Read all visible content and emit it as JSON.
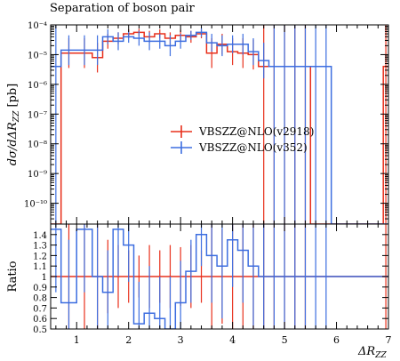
{
  "chart_data": [
    {
      "type": "line",
      "title": "Separation of boson pair",
      "ylabel": "dσ/dΔR_ZZ [pb]",
      "xlabel": "ΔR_ZZ",
      "xlim": [
        0.5,
        7.0
      ],
      "ylim_log10": [
        -10.7,
        -4.0
      ],
      "yscale": "log",
      "y_ticks": [
        {
          "exp": -4,
          "label": "10⁻⁴"
        },
        {
          "exp": -5,
          "label": "10⁻⁵"
        },
        {
          "exp": -6,
          "label": "10⁻⁶"
        },
        {
          "exp": -7,
          "label": "10⁻⁷"
        },
        {
          "exp": -8,
          "label": "10⁻⁸"
        },
        {
          "exp": -9,
          "label": "10⁻⁹"
        },
        {
          "exp": -10,
          "label": "10⁻¹⁰"
        }
      ],
      "x_ticks": [
        1,
        2,
        3,
        4,
        5,
        6,
        7
      ],
      "legend_position": "center-right",
      "series": [
        {
          "name": "VBSZZ@NLO(v2918)",
          "color": "#e8301c",
          "edges": [
            0.5,
            0.7,
            1.0,
            1.3,
            1.5,
            1.7,
            1.9,
            2.1,
            2.3,
            2.5,
            2.7,
            2.9,
            3.1,
            3.3,
            3.5,
            3.7,
            3.9,
            4.1,
            4.3,
            4.5,
            4.7,
            4.9,
            5.1,
            5.3,
            5.5,
            5.7,
            5.9,
            6.1,
            6.3,
            6.5,
            6.7,
            6.9,
            7.0
          ],
          "log10_values": [
            -10.7,
            -4.95,
            -4.95,
            -5.1,
            -4.55,
            -4.45,
            -4.3,
            -4.25,
            -4.4,
            -4.3,
            -4.45,
            -4.35,
            -4.4,
            -4.3,
            -4.95,
            -4.65,
            -4.9,
            -4.95,
            -5.0,
            -5.4,
            -5.4,
            -5.4,
            -5.4,
            -5.4,
            -10.7,
            -10.7,
            -10.7,
            -10.7,
            -10.7,
            -10.7,
            -10.7,
            -5.4
          ],
          "log10_errors": [
            0,
            0.5,
            0.5,
            0.5,
            0.25,
            0.2,
            0.15,
            0.12,
            0.2,
            0.15,
            0.2,
            0.18,
            0.2,
            0.15,
            0.5,
            0.35,
            0.45,
            0.5,
            0.5,
            6,
            6,
            6,
            6,
            6,
            0,
            0,
            0,
            0,
            0,
            0,
            0,
            6
          ]
        },
        {
          "name": "VBSZZ@NLO(v352)",
          "color": "#3d6ee0",
          "edges": [
            0.5,
            0.7,
            1.0,
            1.3,
            1.5,
            1.7,
            1.9,
            2.1,
            2.3,
            2.5,
            2.7,
            2.9,
            3.1,
            3.3,
            3.5,
            3.7,
            3.9,
            4.1,
            4.3,
            4.5,
            4.7,
            4.9,
            5.1,
            5.3,
            5.5,
            5.7,
            5.9,
            6.1,
            6.3,
            6.5,
            6.7,
            6.9,
            7.0
          ],
          "log10_values": [
            -5.4,
            -4.85,
            -4.85,
            -4.85,
            -4.4,
            -4.55,
            -4.4,
            -4.45,
            -4.55,
            -4.55,
            -4.7,
            -4.55,
            -4.35,
            -4.25,
            -4.6,
            -4.7,
            -4.65,
            -4.65,
            -4.9,
            -5.2,
            -5.4,
            -5.4,
            -5.4,
            -5.4,
            -5.4,
            -5.4,
            -10.7,
            -10.7,
            -10.7,
            -10.7,
            -10.7,
            -10.7
          ],
          "log10_errors": [
            6,
            0.5,
            0.5,
            0.5,
            0.25,
            0.3,
            0.2,
            0.25,
            0.3,
            0.25,
            0.35,
            0.25,
            0.15,
            0.15,
            0.3,
            0.35,
            0.3,
            0.35,
            0.45,
            0.6,
            6,
            6,
            6,
            6,
            6,
            6,
            0,
            0,
            0,
            0,
            0,
            0
          ]
        }
      ]
    },
    {
      "type": "line",
      "ylabel": "Ratio",
      "xlabel": "ΔR_ZZ",
      "xlim": [
        0.5,
        7.0
      ],
      "ylim": [
        0.5,
        1.5
      ],
      "y_ticks": [
        0.5,
        0.6,
        0.7,
        0.8,
        0.9,
        1,
        1.1,
        1.2,
        1.3,
        1.4
      ],
      "series": [
        {
          "name": "VBSZZ@NLO(v2918)",
          "color": "#e8301c",
          "edges": [
            0.5,
            0.7,
            1.0,
            1.3,
            1.5,
            1.7,
            1.9,
            2.1,
            2.3,
            2.5,
            2.7,
            2.9,
            3.1,
            3.3,
            3.5,
            3.7,
            3.9,
            4.1,
            4.3,
            4.5,
            4.7,
            4.9,
            5.1,
            5.3,
            5.5,
            5.7,
            5.9,
            6.1,
            6.3,
            6.5,
            6.7,
            6.9,
            7.0
          ],
          "values": [
            1,
            1,
            1,
            1,
            1,
            1,
            1,
            1,
            1,
            1,
            1,
            1,
            1,
            1,
            1,
            1,
            1,
            1,
            1,
            1,
            1,
            1,
            1,
            1,
            1,
            1,
            1,
            1,
            1,
            1,
            1,
            1
          ],
          "errors": [
            0,
            0.6,
            0.6,
            0.6,
            0.35,
            0.3,
            0.25,
            0.2,
            0.3,
            0.25,
            0.3,
            0.28,
            0.3,
            0.25,
            0.6,
            0.45,
            0.55,
            0.6,
            0.6,
            0.6,
            0.6,
            0.6,
            0.6,
            0.6,
            0,
            0,
            0,
            0,
            0,
            0,
            0,
            0.6
          ]
        },
        {
          "name": "VBSZZ@NLO(v352)",
          "color": "#3d6ee0",
          "edges": [
            0.5,
            0.7,
            1.0,
            1.3,
            1.5,
            1.7,
            1.9,
            2.1,
            2.3,
            2.5,
            2.7,
            2.9,
            3.1,
            3.3,
            3.5,
            3.7,
            3.9,
            4.1,
            4.3,
            4.5,
            4.7,
            4.9,
            5.1,
            5.3,
            5.5,
            5.7,
            5.9,
            6.1,
            6.3,
            6.5,
            6.7,
            6.9,
            7.0
          ],
          "values": [
            1.45,
            0.75,
            1.45,
            1.0,
            0.85,
            1.45,
            1.3,
            0.55,
            0.65,
            0.6,
            0.5,
            0.75,
            1.05,
            1.4,
            1.2,
            1.1,
            1.35,
            1.25,
            1.1,
            1.0,
            1.0,
            1.0,
            1.0,
            1.0,
            1.0,
            1.0,
            1.0,
            1.0,
            1.0,
            1.0,
            1.0,
            1.0
          ],
          "errors": [
            0.6,
            0.6,
            0.6,
            0.6,
            0.4,
            0.45,
            0.35,
            0.4,
            0.45,
            0.4,
            0.5,
            0.4,
            0.3,
            0.3,
            0.45,
            0.5,
            0.45,
            0.5,
            0.6,
            0.7,
            0.6,
            0.6,
            0.6,
            0.6,
            0.6,
            0.6,
            0,
            0,
            0,
            0,
            0,
            0
          ]
        }
      ]
    }
  ],
  "labels": {
    "title": "Separation of boson pair",
    "ylabel_main": "dσ/dΔR",
    "ylabel_main_sub": "ZZ",
    "ylabel_main_unit": " [pb]",
    "ylabel_ratio": "Ratio",
    "xlabel": "ΔR",
    "xlabel_sub": "ZZ",
    "legend_1": "VBSZZ@NLO(v2918)",
    "legend_2": "VBSZZ@NLO(v352)"
  }
}
